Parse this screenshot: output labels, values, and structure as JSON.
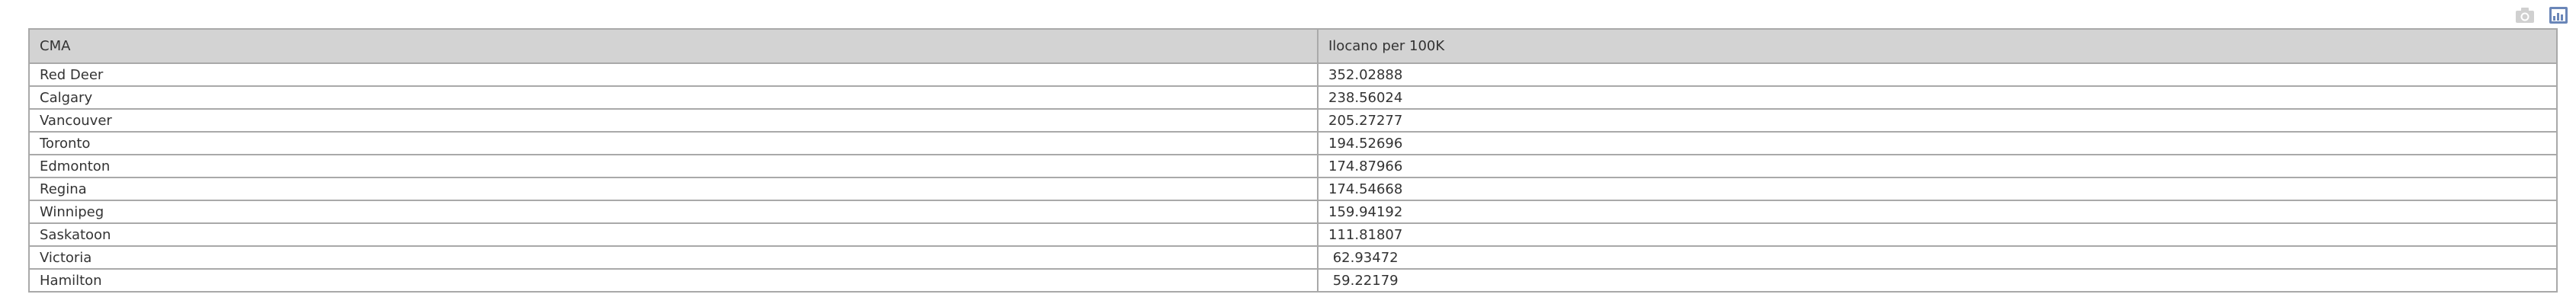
{
  "toolbar": {
    "camera_icon": "camera-icon",
    "chart_icon": "chart-icon",
    "camera_color": "#d0d0d0",
    "chart_color": "#6a86b8"
  },
  "table": {
    "columns": [
      "CMA",
      "Ilocano per 100K"
    ],
    "rows": [
      [
        "Red Deer",
        "352.02888"
      ],
      [
        "Calgary",
        "238.56024"
      ],
      [
        "Vancouver",
        "205.27277"
      ],
      [
        "Toronto",
        "194.52696"
      ],
      [
        "Edmonton",
        "174.87966"
      ],
      [
        "Regina",
        "174.54668"
      ],
      [
        "Winnipeg",
        "159.94192"
      ],
      [
        "Saskatoon",
        "111.81807"
      ],
      [
        "Victoria",
        " 62.93472"
      ],
      [
        "Hamilton",
        " 59.22179"
      ]
    ]
  }
}
